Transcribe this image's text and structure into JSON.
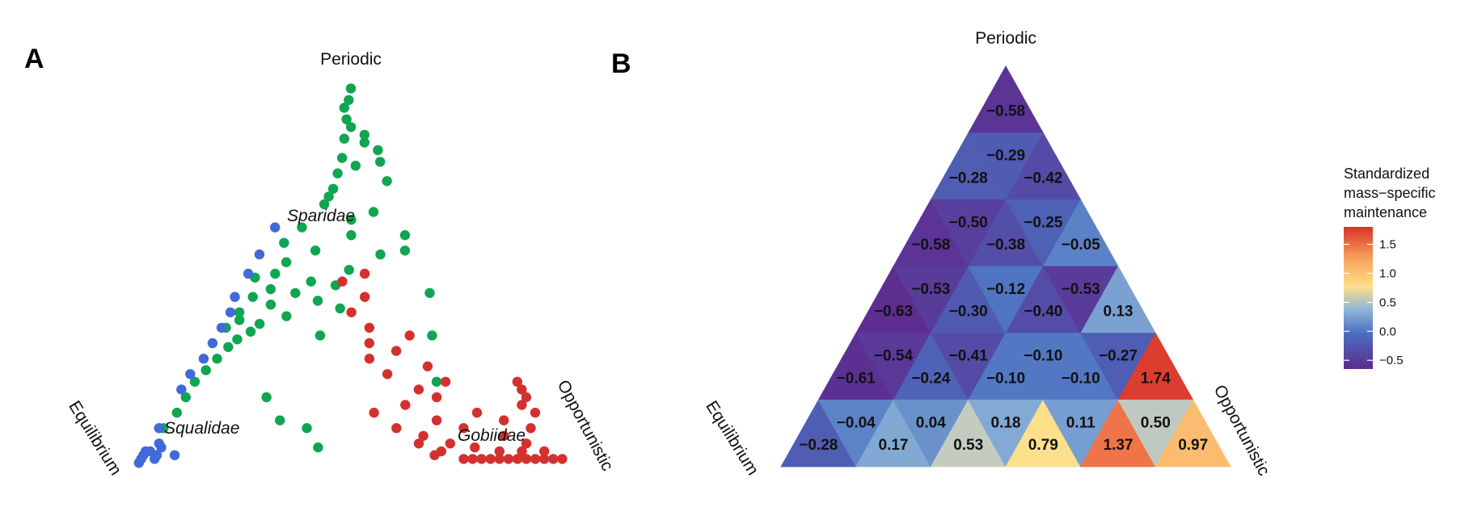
{
  "panel_a": {
    "letter": "A",
    "vertices": {
      "top": "Periodic",
      "left": "Equilibrium",
      "right": "Opportunistic"
    },
    "colors": {
      "green": "#10a551",
      "blue": "#4169d8",
      "red": "#d3312f"
    }
  },
  "panel_b": {
    "letter": "B",
    "vertices": {
      "top": "Periodic",
      "left": "Equilibrium",
      "right": "Opportunistic"
    },
    "legend": {
      "title_lines": [
        "Standardized",
        "mass−specific",
        "maintenance"
      ],
      "ticks": [
        "1.5",
        "1.0",
        "0.5",
        "0.0",
        "−0.5"
      ],
      "tick_values": [
        1.5,
        1.0,
        0.5,
        0.0,
        -0.5
      ],
      "range": [
        -0.65,
        1.8
      ]
    }
  },
  "chart_data": [
    {
      "type": "scatter",
      "panel": "A",
      "coordinate_system": "ternary",
      "axes": [
        "Periodic",
        "Equilibrium",
        "Opportunistic"
      ],
      "series": [
        {
          "name": "Sparidae",
          "color": "#10a551",
          "points": [
            [
              0.98,
              0.01,
              0.01
            ],
            [
              0.95,
              0.03,
              0.02
            ],
            [
              0.93,
              0.05,
              0.02
            ],
            [
              0.9,
              0.06,
              0.04
            ],
            [
              0.88,
              0.06,
              0.06
            ],
            [
              0.86,
              0.04,
              0.1
            ],
            [
              0.85,
              0.09,
              0.06
            ],
            [
              0.84,
              0.05,
              0.11
            ],
            [
              0.82,
              0.03,
              0.15
            ],
            [
              0.8,
              0.12,
              0.08
            ],
            [
              0.79,
              0.04,
              0.17
            ],
            [
              0.78,
              0.1,
              0.12
            ],
            [
              0.76,
              0.15,
              0.09
            ],
            [
              0.74,
              0.05,
              0.21
            ],
            [
              0.72,
              0.18,
              0.1
            ],
            [
              0.7,
              0.2,
              0.1
            ],
            [
              0.68,
              0.22,
              0.1
            ],
            [
              0.66,
              0.12,
              0.22
            ],
            [
              0.64,
              0.18,
              0.18
            ],
            [
              0.62,
              0.3,
              0.08
            ],
            [
              0.6,
              0.2,
              0.2
            ],
            [
              0.58,
              0.36,
              0.06
            ],
            [
              0.56,
              0.3,
              0.14
            ],
            [
              0.55,
              0.16,
              0.29
            ],
            [
              0.53,
              0.38,
              0.09
            ],
            [
              0.51,
              0.25,
              0.24
            ],
            [
              0.5,
              0.42,
              0.08
            ],
            [
              0.49,
              0.47,
              0.04
            ],
            [
              0.48,
              0.35,
              0.17
            ],
            [
              0.47,
              0.3,
              0.23
            ],
            [
              0.46,
              0.45,
              0.09
            ],
            [
              0.45,
              0.4,
              0.15
            ],
            [
              0.44,
              0.5,
              0.06
            ],
            [
              0.43,
              0.36,
              0.21
            ],
            [
              0.42,
              0.47,
              0.11
            ],
            [
              0.41,
              0.32,
              0.27
            ],
            [
              0.4,
              0.55,
              0.05
            ],
            [
              0.39,
              0.45,
              0.16
            ],
            [
              0.38,
              0.56,
              0.06
            ],
            [
              0.37,
              0.52,
              0.11
            ],
            [
              0.36,
              0.6,
              0.04
            ],
            [
              0.35,
              0.55,
              0.1
            ],
            [
              0.34,
              0.4,
              0.26
            ],
            [
              0.33,
              0.59,
              0.08
            ],
            [
              0.31,
              0.62,
              0.07
            ],
            [
              0.28,
              0.66,
              0.06
            ],
            [
              0.25,
              0.7,
              0.05
            ],
            [
              0.22,
              0.74,
              0.04
            ],
            [
              0.18,
              0.78,
              0.04
            ],
            [
              0.14,
              0.82,
              0.04
            ],
            [
              0.1,
              0.87,
              0.03
            ],
            [
              0.18,
              0.6,
              0.22
            ],
            [
              0.12,
              0.6,
              0.28
            ],
            [
              0.1,
              0.55,
              0.35
            ],
            [
              0.05,
              0.55,
              0.4
            ],
            [
              0.34,
              0.15,
              0.51
            ],
            [
              0.56,
              0.1,
              0.34
            ],
            [
              0.6,
              0.08,
              0.32
            ],
            [
              0.45,
              0.1,
              0.45
            ],
            [
              0.22,
              0.2,
              0.58
            ]
          ]
        },
        {
          "name": "Squalidae",
          "color": "#4169d8",
          "points": [
            [
              0.02,
              0.96,
              0.02
            ],
            [
              0.03,
              0.95,
              0.02
            ],
            [
              0.04,
              0.93,
              0.03
            ],
            [
              0.05,
              0.9,
              0.05
            ],
            [
              0.03,
              0.92,
              0.05
            ],
            [
              0.06,
              0.9,
              0.04
            ],
            [
              0.01,
              0.97,
              0.02
            ],
            [
              0.02,
              0.93,
              0.05
            ],
            [
              0.04,
              0.94,
              0.02
            ],
            [
              0.03,
              0.88,
              0.09
            ],
            [
              0.1,
              0.88,
              0.02
            ],
            [
              0.2,
              0.78,
              0.02
            ],
            [
              0.24,
              0.74,
              0.02
            ],
            [
              0.28,
              0.69,
              0.03
            ],
            [
              0.32,
              0.65,
              0.03
            ],
            [
              0.36,
              0.61,
              0.03
            ],
            [
              0.4,
              0.57,
              0.03
            ],
            [
              0.44,
              0.54,
              0.02
            ],
            [
              0.5,
              0.48,
              0.02
            ],
            [
              0.55,
              0.43,
              0.02
            ],
            [
              0.62,
              0.36,
              0.02
            ]
          ]
        },
        {
          "name": "Gobiidae",
          "color": "#d3312f",
          "points": [
            [
              0.02,
              0.02,
              0.96
            ],
            [
              0.02,
              0.04,
              0.94
            ],
            [
              0.02,
              0.06,
              0.92
            ],
            [
              0.02,
              0.08,
              0.9
            ],
            [
              0.02,
              0.1,
              0.88
            ],
            [
              0.02,
              0.12,
              0.86
            ],
            [
              0.02,
              0.14,
              0.84
            ],
            [
              0.02,
              0.16,
              0.82
            ],
            [
              0.02,
              0.18,
              0.8
            ],
            [
              0.02,
              0.2,
              0.78
            ],
            [
              0.02,
              0.22,
              0.76
            ],
            [
              0.02,
              0.24,
              0.74
            ],
            [
              0.04,
              0.05,
              0.91
            ],
            [
              0.04,
              0.1,
              0.86
            ],
            [
              0.04,
              0.15,
              0.81
            ],
            [
              0.05,
              0.2,
              0.75
            ],
            [
              0.06,
              0.08,
              0.86
            ],
            [
              0.08,
              0.12,
              0.8
            ],
            [
              0.1,
              0.05,
              0.85
            ],
            [
              0.12,
              0.1,
              0.78
            ],
            [
              0.14,
              0.02,
              0.84
            ],
            [
              0.16,
              0.04,
              0.8
            ],
            [
              0.18,
              0.02,
              0.8
            ],
            [
              0.2,
              0.02,
              0.78
            ],
            [
              0.22,
              0.02,
              0.76
            ],
            [
              0.06,
              0.25,
              0.69
            ],
            [
              0.08,
              0.3,
              0.62
            ],
            [
              0.1,
              0.2,
              0.7
            ],
            [
              0.12,
              0.25,
              0.63
            ],
            [
              0.14,
              0.15,
              0.71
            ],
            [
              0.16,
              0.3,
              0.54
            ],
            [
              0.2,
              0.25,
              0.55
            ],
            [
              0.24,
              0.3,
              0.46
            ],
            [
              0.28,
              0.32,
              0.4
            ],
            [
              0.3,
              0.25,
              0.45
            ],
            [
              0.32,
              0.3,
              0.38
            ],
            [
              0.34,
              0.2,
              0.46
            ],
            [
              0.36,
              0.28,
              0.36
            ],
            [
              0.4,
              0.3,
              0.3
            ],
            [
              0.44,
              0.25,
              0.31
            ],
            [
              0.48,
              0.28,
              0.24
            ],
            [
              0.5,
              0.22,
              0.28
            ],
            [
              0.26,
              0.2,
              0.54
            ],
            [
              0.22,
              0.18,
              0.6
            ],
            [
              0.18,
              0.22,
              0.6
            ],
            [
              0.1,
              0.35,
              0.55
            ],
            [
              0.14,
              0.38,
              0.48
            ],
            [
              0.06,
              0.32,
              0.62
            ],
            [
              0.04,
              0.28,
              0.68
            ],
            [
              0.03,
              0.3,
              0.67
            ]
          ]
        }
      ],
      "annotations": [
        "Sparidae",
        "Squalidae",
        "Gobiidae"
      ]
    },
    {
      "type": "heatmap",
      "panel": "B",
      "coordinate_system": "ternary",
      "legend_title": "Standardized mass−specific maintenance",
      "color_scale": [
        "#5e2a8e",
        "#4a6fc0",
        "#8fb7d8",
        "#ffe08a",
        "#f8a15a",
        "#d8342a"
      ],
      "rows": [
        [
          -0.58
        ],
        [
          -0.28,
          -0.29,
          -0.42
        ],
        [
          -0.58,
          -0.5,
          -0.38,
          -0.25,
          -0.05
        ],
        [
          -0.63,
          -0.53,
          -0.3,
          -0.12,
          -0.4,
          -0.53,
          0.13
        ],
        [
          -0.61,
          -0.54,
          -0.24,
          -0.41,
          -0.1,
          -0.1,
          -0.1,
          -0.27,
          1.74
        ],
        [
          -0.28,
          -0.04,
          0.17,
          0.04,
          0.53,
          0.18,
          0.79,
          0.11,
          1.37,
          0.5,
          0.97
        ]
      ],
      "labels": [
        [
          "−0.58"
        ],
        [
          "−0.28",
          "−0.29",
          "−0.42"
        ],
        [
          "−0.58",
          "−0.50",
          "−0.38",
          "−0.25",
          "−0.05"
        ],
        [
          "−0.63",
          "−0.53",
          "−0.30",
          "−0.12",
          "−0.40",
          "−0.53",
          "0.13"
        ],
        [
          "−0.61",
          "−0.54",
          "−0.24",
          "−0.41",
          "−0.10",
          "−0.10",
          "−0.10",
          "−0.27",
          "1.74"
        ],
        [
          "−0.28",
          "−0.04",
          "0.17",
          "0.04",
          "0.53",
          "0.18",
          "0.79",
          "0.11",
          "1.37",
          "0.50",
          "0.97"
        ]
      ]
    }
  ]
}
